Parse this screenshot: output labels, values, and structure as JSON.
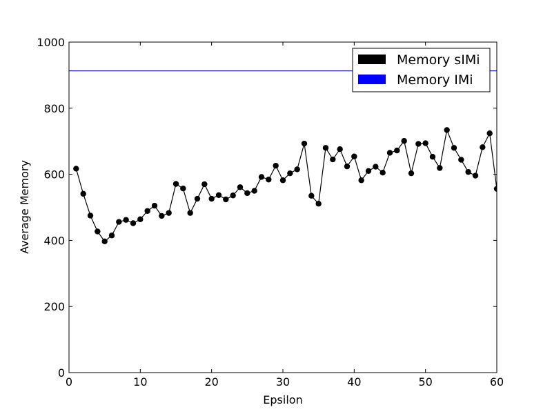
{
  "chart_data": {
    "type": "line",
    "xlabel": "Epsilon",
    "ylabel": "Average Memory",
    "xlim": [
      0,
      60
    ],
    "ylim": [
      0,
      1000
    ],
    "x_ticks": [
      0,
      10,
      20,
      30,
      40,
      50,
      60
    ],
    "y_ticks": [
      0,
      200,
      400,
      600,
      800,
      1000
    ],
    "x_tick_labels": [
      "0",
      "10",
      "20",
      "30",
      "40",
      "50",
      "60"
    ],
    "y_tick_labels": [
      "0",
      "200",
      "400",
      "600",
      "800",
      "1000"
    ],
    "grid": false,
    "legend_position": "top-right",
    "series": [
      {
        "name": "Memory sIMi",
        "color": "#000000",
        "marker": "circle",
        "x": [
          1,
          2,
          3,
          4,
          5,
          6,
          7,
          8,
          9,
          10,
          11,
          12,
          13,
          14,
          15,
          16,
          17,
          18,
          19,
          20,
          21,
          22,
          23,
          24,
          25,
          26,
          27,
          28,
          29,
          30,
          31,
          32,
          33,
          34,
          35,
          36,
          37,
          38,
          39,
          40,
          41,
          42,
          43,
          44,
          45,
          46,
          47,
          48,
          49,
          50,
          51,
          52,
          53,
          54,
          55,
          56,
          57,
          58,
          59,
          60
        ],
        "y": [
          617,
          541,
          475,
          427,
          397,
          415,
          456,
          462,
          452,
          464,
          489,
          505,
          474,
          483,
          571,
          557,
          483,
          526,
          570,
          526,
          537,
          524,
          536,
          561,
          543,
          550,
          592,
          584,
          626,
          582,
          603,
          615,
          693,
          535,
          511,
          680,
          645,
          676,
          624,
          654,
          582,
          610,
          623,
          605,
          665,
          672,
          701,
          603,
          692,
          694,
          653,
          619,
          734,
          680,
          644,
          607,
          596,
          682,
          724,
          556
        ]
      },
      {
        "name": "Memory IMi",
        "color": "#0000ff",
        "marker": "none",
        "x": [
          0,
          60
        ],
        "y": [
          913,
          913
        ]
      }
    ]
  }
}
